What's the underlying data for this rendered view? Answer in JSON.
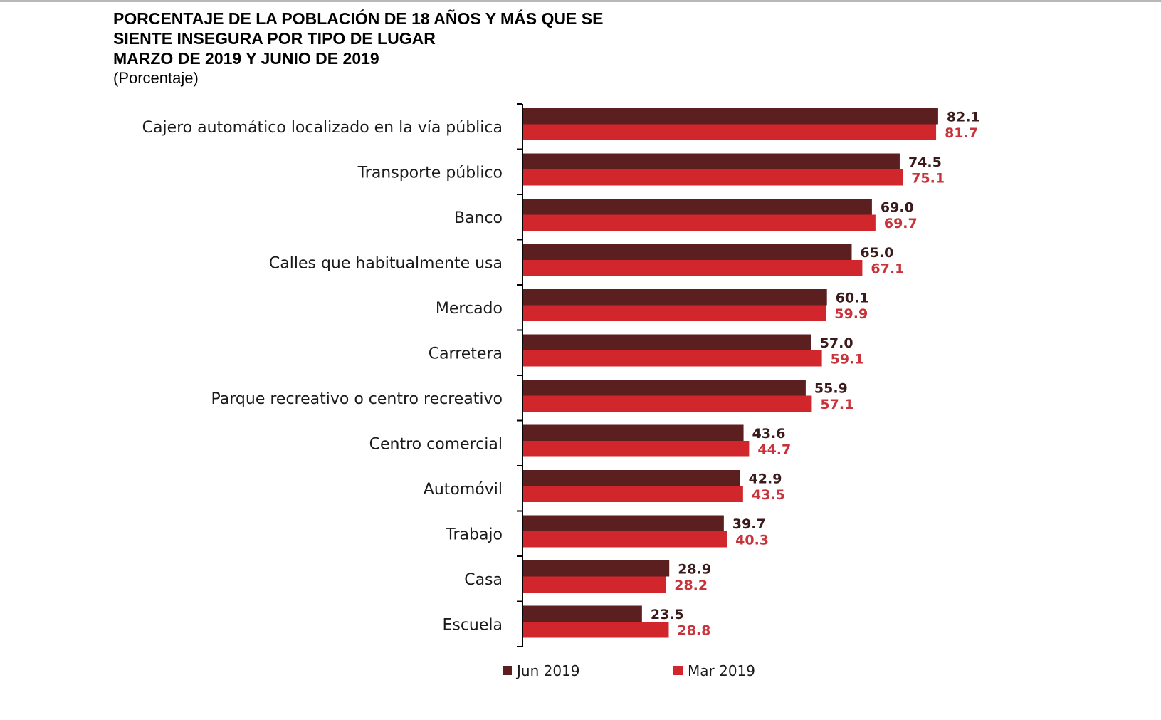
{
  "title": {
    "line1": "PORCENTAJE DE LA POBLACIÓN DE 18 AÑOS Y MÁS QUE SE",
    "line2": "SIENTE INSEGURA POR TIPO DE LUGAR",
    "line3": "MARZO DE 2019 Y JUNIO DE 2019",
    "subtitle": "(Porcentaje)"
  },
  "colors": {
    "jun": "#5b1f1f",
    "mar": "#d0262c",
    "jun_label": "#3a1a1a",
    "mar_label": "#c8333a",
    "axis": "#000000"
  },
  "chart_data": {
    "type": "bar",
    "orientation": "horizontal",
    "categories": [
      "Cajero automático localizado en la vía pública",
      "Transporte público",
      "Banco",
      "Calles que habitualmente usa",
      "Mercado",
      "Carretera",
      "Parque recreativo o centro recreativo",
      "Centro comercial",
      "Automóvil",
      "Trabajo",
      "Casa",
      "Escuela"
    ],
    "series": [
      {
        "name": "Jun 2019",
        "values": [
          82.1,
          74.5,
          69.0,
          65.0,
          60.1,
          57.0,
          55.9,
          43.6,
          42.9,
          39.7,
          28.9,
          23.5
        ],
        "labels": [
          "82.1",
          "74.5",
          "69.0",
          "65.0",
          "60.1",
          "57.0",
          "55.9",
          "43.6",
          "42.9",
          "39.7",
          "28.9",
          "23.5"
        ]
      },
      {
        "name": "Mar 2019",
        "values": [
          81.7,
          75.1,
          69.7,
          67.1,
          59.9,
          59.1,
          57.1,
          44.7,
          43.5,
          40.3,
          28.2,
          28.8
        ],
        "labels": [
          "81.7",
          "75.1",
          "69.7",
          "67.1",
          "59.9",
          "59.1",
          "57.1",
          "44.7",
          "43.5",
          "40.3",
          "28.2",
          "28.8"
        ]
      }
    ],
    "xlim": [
      0,
      100
    ],
    "grid": false,
    "legend_position": "bottom",
    "data_labels": true
  }
}
